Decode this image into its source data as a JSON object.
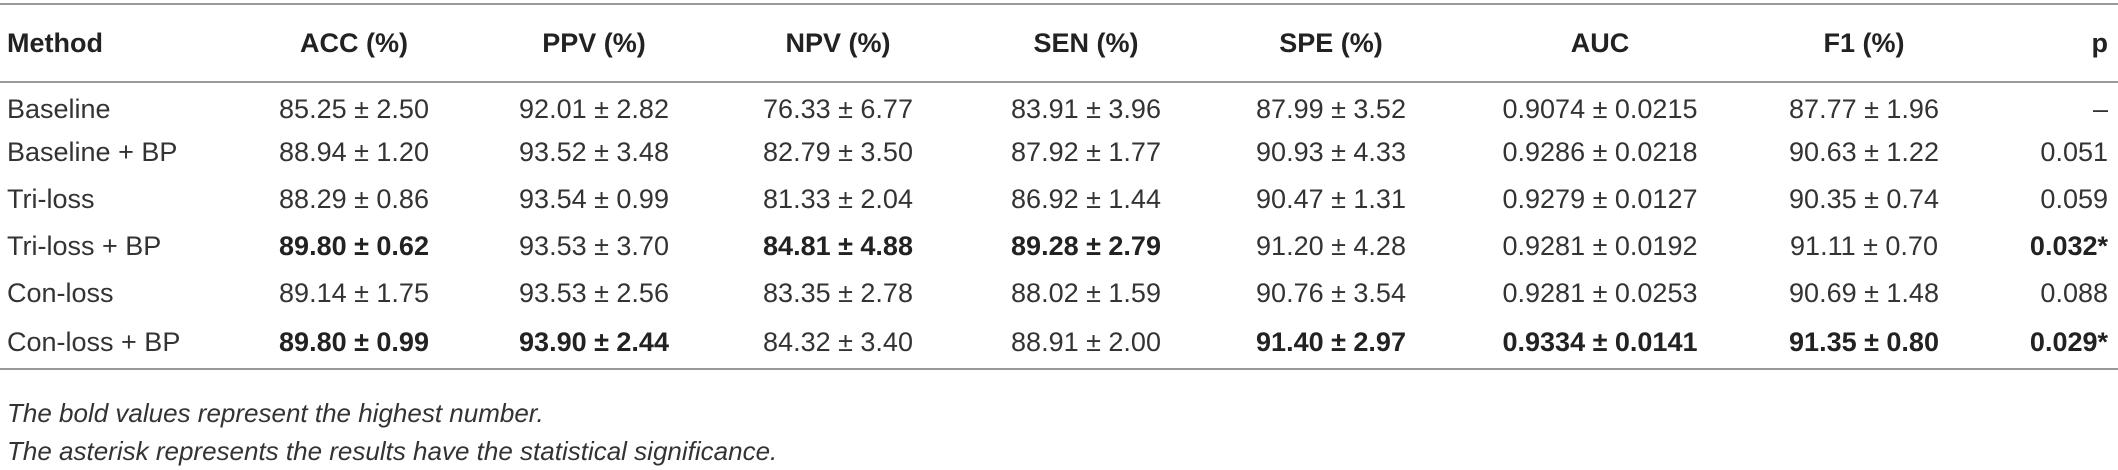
{
  "table": {
    "header": [
      "Method",
      "ACC (%)",
      "PPV (%)",
      "NPV (%)",
      "SEN (%)",
      "SPE (%)",
      "AUC",
      "F1 (%)",
      "p"
    ],
    "rows": [
      [
        "Baseline",
        "85.25 ± 2.50",
        "92.01 ± 2.82",
        "76.33 ± 6.77",
        "83.91 ± 3.96",
        "87.99 ± 3.52",
        "0.9074 ± 0.0215",
        "87.77 ± 1.96",
        "–"
      ],
      [
        "Baseline + BP",
        "88.94 ± 1.20",
        "93.52 ± 3.48",
        "82.79 ± 3.50",
        "87.92 ± 1.77",
        "90.93 ± 4.33",
        "0.9286 ± 0.0218",
        "90.63 ± 1.22",
        "0.051"
      ],
      [
        "Tri-loss",
        "88.29 ± 0.86",
        "93.54 ± 0.99",
        "81.33 ± 2.04",
        "86.92 ± 1.44",
        "90.47 ± 1.31",
        "0.9279 ± 0.0127",
        "90.35 ± 0.74",
        "0.059"
      ],
      [
        "Tri-loss + BP",
        "89.80 ± 0.62",
        "93.53 ± 3.70",
        "84.81 ± 4.88",
        "89.28 ± 2.79",
        "91.20 ± 4.28",
        "0.9281 ± 0.0192",
        "91.11 ± 0.70",
        "0.032*"
      ],
      [
        "Con-loss",
        "89.14 ± 1.75",
        "93.53 ± 2.56",
        "83.35 ± 2.78",
        "88.02 ± 1.59",
        "90.76 ± 3.54",
        "0.9281 ± 0.0253",
        "90.69 ± 1.48",
        "0.088"
      ],
      [
        "Con-loss + BP",
        "89.80 ± 0.99",
        "93.90 ± 2.44",
        "84.32 ± 3.40",
        "88.91 ± 2.00",
        "91.40 ± 2.97",
        "0.9334 ± 0.0141",
        "91.35 ± 0.80",
        "0.029*"
      ]
    ]
  },
  "notes": [
    "The bold values represent the highest number.",
    "The asterisk represents the results have the statistical significance."
  ]
}
